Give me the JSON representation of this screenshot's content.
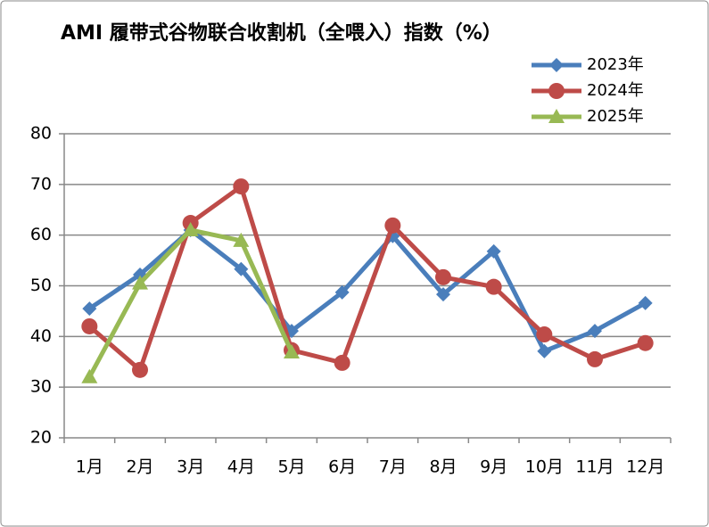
{
  "chart_data": {
    "type": "line",
    "title": "AMI 履带式谷物联合收割机（全喂入）指数（%）",
    "categories": [
      "1月",
      "2月",
      "3月",
      "4月",
      "5月",
      "6月",
      "7月",
      "8月",
      "9月",
      "10月",
      "11月",
      "12月"
    ],
    "series": [
      {
        "name": "2023年",
        "color": "#4a7ebb",
        "marker": "diamond",
        "values": [
          45.5,
          52.2,
          61,
          53.3,
          41.1,
          48.7,
          59.8,
          48.3,
          56.8,
          37.1,
          41.1,
          46.6
        ]
      },
      {
        "name": "2024年",
        "color": "#be4b48",
        "marker": "circle",
        "values": [
          42,
          33.4,
          62.4,
          69.6,
          37.3,
          34.8,
          61.9,
          51.7,
          49.8,
          40.4,
          35.5,
          38.7
        ]
      },
      {
        "name": "2025年",
        "color": "#98b954",
        "marker": "triangle",
        "values": [
          32,
          50.5,
          61,
          58.9,
          36.9,
          null,
          null,
          null,
          null,
          null,
          null,
          null
        ]
      }
    ],
    "ylim": [
      20,
      80
    ],
    "yticks": [
      20,
      30,
      40,
      50,
      60,
      70,
      80
    ],
    "grid": true,
    "legend": "top-right"
  }
}
